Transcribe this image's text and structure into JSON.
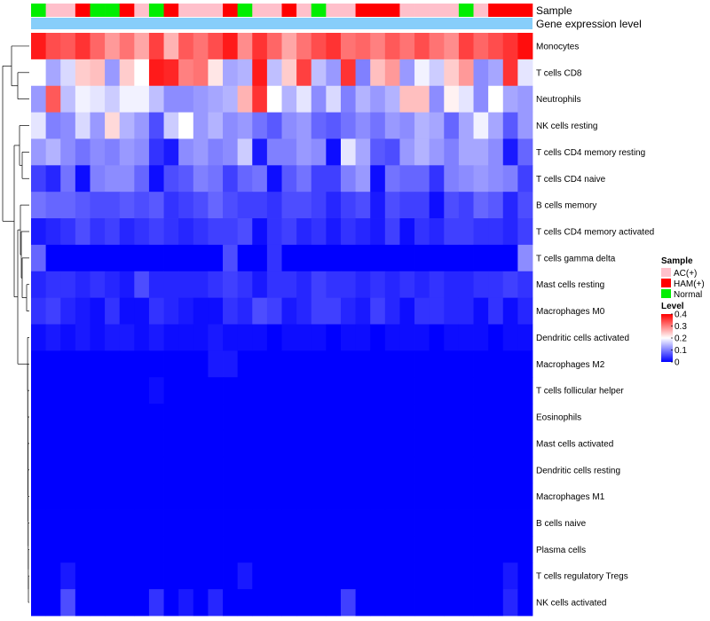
{
  "chart_data": {
    "type": "heatmap",
    "annotations": {
      "sample_label": "Sample",
      "level_label": "Gene expression level",
      "sample_colors": [
        "Normal",
        "AC(+)",
        "AC(+)",
        "HAM(+)",
        "Normal",
        "Normal",
        "HAM(+)",
        "AC(+)",
        "Normal",
        "HAM(+)",
        "AC(+)",
        "AC(+)",
        "AC(+)",
        "HAM(+)",
        "Normal",
        "AC(+)",
        "AC(+)",
        "HAM(+)",
        "AC(+)",
        "Normal",
        "AC(+)",
        "AC(+)",
        "HAM(+)",
        "HAM(+)",
        "HAM(+)",
        "AC(+)",
        "AC(+)",
        "AC(+)",
        "AC(+)",
        "Normal",
        "AC(+)",
        "HAM(+)",
        "HAM(+)",
        "HAM(+)"
      ]
    },
    "rows": [
      "Monocytes",
      "T cells CD8",
      "Neutrophils",
      "NK cells resting",
      "T cells CD4 memory resting",
      "T cells CD4 naive",
      "B cells memory",
      "T cells CD4 memory activated",
      "T cells gamma delta",
      "Mast cells resting",
      "Macrophages M0",
      "Dendritic cells activated",
      "Macrophages M2",
      "T cells follicular helper",
      "Eosinophils",
      "Mast cells activated",
      "Dendritic cells resting",
      "Macrophages M1",
      "B cells naive",
      "Plasma cells",
      "T cells regulatory  Tregs",
      "NK cells activated"
    ],
    "values": [
      [
        0.38,
        0.34,
        0.33,
        0.36,
        0.32,
        0.28,
        0.31,
        0.27,
        0.35,
        0.26,
        0.33,
        0.31,
        0.34,
        0.38,
        0.29,
        0.36,
        0.32,
        0.27,
        0.31,
        0.34,
        0.36,
        0.31,
        0.32,
        0.3,
        0.33,
        0.31,
        0.34,
        0.31,
        0.29,
        0.35,
        0.32,
        0.34,
        0.36,
        0.39
      ],
      [
        0.2,
        0.13,
        0.17,
        0.24,
        0.25,
        0.12,
        0.24,
        0.2,
        0.38,
        0.37,
        0.3,
        0.31,
        0.22,
        0.13,
        0.14,
        0.38,
        0.15,
        0.24,
        0.35,
        0.15,
        0.12,
        0.36,
        0.1,
        0.25,
        0.28,
        0.12,
        0.19,
        0.16,
        0.24,
        0.28,
        0.11,
        0.13,
        0.36,
        0.18
      ],
      [
        0.12,
        0.33,
        0.15,
        0.19,
        0.18,
        0.16,
        0.19,
        0.19,
        0.15,
        0.11,
        0.11,
        0.12,
        0.13,
        0.14,
        0.26,
        0.36,
        0.2,
        0.14,
        0.18,
        0.11,
        0.17,
        0.1,
        0.14,
        0.12,
        0.14,
        0.25,
        0.25,
        0.11,
        0.21,
        0.18,
        0.11,
        0.2,
        0.13,
        0.12
      ],
      [
        0.18,
        0.1,
        0.11,
        0.17,
        0.12,
        0.23,
        0.14,
        0.12,
        0.06,
        0.16,
        0.2,
        0.12,
        0.14,
        0.11,
        0.12,
        0.09,
        0.07,
        0.11,
        0.12,
        0.08,
        0.07,
        0.09,
        0.11,
        0.09,
        0.12,
        0.11,
        0.14,
        0.13,
        0.08,
        0.13,
        0.19,
        0.13,
        0.07,
        0.12
      ],
      [
        0.12,
        0.14,
        0.11,
        0.09,
        0.11,
        0.1,
        0.12,
        0.11,
        0.04,
        0.02,
        0.11,
        0.12,
        0.1,
        0.11,
        0.16,
        0.02,
        0.1,
        0.1,
        0.12,
        0.11,
        0.01,
        0.18,
        0.13,
        0.07,
        0.06,
        0.12,
        0.14,
        0.12,
        0.1,
        0.13,
        0.13,
        0.11,
        0.02,
        0.08
      ],
      [
        0.05,
        0.03,
        0.09,
        0.01,
        0.1,
        0.11,
        0.11,
        0.08,
        0.01,
        0.06,
        0.07,
        0.1,
        0.09,
        0.05,
        0.08,
        0.09,
        0.01,
        0.07,
        0.09,
        0.05,
        0.05,
        0.1,
        0.12,
        0.01,
        0.09,
        0.08,
        0.08,
        0.04,
        0.1,
        0.11,
        0.12,
        0.11,
        0.1,
        0.05
      ],
      [
        0.09,
        0.08,
        0.08,
        0.07,
        0.06,
        0.06,
        0.07,
        0.06,
        0.07,
        0.04,
        0.05,
        0.06,
        0.08,
        0.06,
        0.05,
        0.05,
        0.04,
        0.06,
        0.06,
        0.05,
        0.03,
        0.05,
        0.06,
        0.02,
        0.06,
        0.05,
        0.05,
        0.01,
        0.06,
        0.05,
        0.08,
        0.07,
        0.03,
        0.06
      ],
      [
        0.02,
        0.03,
        0.04,
        0.06,
        0.04,
        0.05,
        0.03,
        0.04,
        0.05,
        0.04,
        0.03,
        0.04,
        0.05,
        0.05,
        0.06,
        0.01,
        0.04,
        0.05,
        0.03,
        0.04,
        0.02,
        0.04,
        0.03,
        0.02,
        0.05,
        0.01,
        0.04,
        0.03,
        0.05,
        0.05,
        0.04,
        0.04,
        0.03,
        0.05
      ],
      [
        0.08,
        0.0,
        0.0,
        0.0,
        0.0,
        0.0,
        0.0,
        0.0,
        0.0,
        0.0,
        0.0,
        0.0,
        0.0,
        0.06,
        0.0,
        0.0,
        0.04,
        0.0,
        0.0,
        0.0,
        0.0,
        0.0,
        0.0,
        0.0,
        0.0,
        0.0,
        0.0,
        0.0,
        0.0,
        0.0,
        0.0,
        0.0,
        0.0,
        0.11
      ],
      [
        0.03,
        0.04,
        0.04,
        0.03,
        0.04,
        0.03,
        0.02,
        0.06,
        0.03,
        0.03,
        0.03,
        0.03,
        0.04,
        0.05,
        0.04,
        0.02,
        0.04,
        0.04,
        0.03,
        0.05,
        0.04,
        0.04,
        0.03,
        0.04,
        0.03,
        0.04,
        0.03,
        0.04,
        0.03,
        0.03,
        0.04,
        0.04,
        0.05,
        0.04
      ],
      [
        0.04,
        0.05,
        0.03,
        0.02,
        0.01,
        0.04,
        0.01,
        0.01,
        0.04,
        0.03,
        0.02,
        0.01,
        0.01,
        0.04,
        0.03,
        0.06,
        0.05,
        0.02,
        0.03,
        0.05,
        0.05,
        0.03,
        0.02,
        0.05,
        0.03,
        0.01,
        0.04,
        0.04,
        0.03,
        0.03,
        0.01,
        0.04,
        0.01,
        0.03
      ],
      [
        0.01,
        0.02,
        0.01,
        0.02,
        0.01,
        0.02,
        0.02,
        0.01,
        0.02,
        0.01,
        0.01,
        0.01,
        0.02,
        0.01,
        0.01,
        0.01,
        0.0,
        0.01,
        0.01,
        0.01,
        0.0,
        0.01,
        0.01,
        0.0,
        0.01,
        0.01,
        0.01,
        0.0,
        0.01,
        0.01,
        0.01,
        0.0,
        0.01,
        0.01
      ],
      [
        0.0,
        0.0,
        0.0,
        0.0,
        0.0,
        0.0,
        0.0,
        0.0,
        0.0,
        0.0,
        0.0,
        0.0,
        0.02,
        0.02,
        0.0,
        0.0,
        0.0,
        0.0,
        0.0,
        0.0,
        0.0,
        0.0,
        0.0,
        0.0,
        0.0,
        0.0,
        0.0,
        0.0,
        0.0,
        0.0,
        0.0,
        0.0,
        0.0,
        0.0
      ],
      [
        0.0,
        0.0,
        0.0,
        0.0,
        0.0,
        0.0,
        0.0,
        0.0,
        0.01,
        0.0,
        0.0,
        0.0,
        0.0,
        0.0,
        0.0,
        0.0,
        0.0,
        0.0,
        0.0,
        0.0,
        0.0,
        0.0,
        0.0,
        0.0,
        0.0,
        0.0,
        0.0,
        0.0,
        0.0,
        0.0,
        0.0,
        0.0,
        0.0,
        0.0
      ],
      [
        0.0,
        0.0,
        0.0,
        0.0,
        0.0,
        0.0,
        0.0,
        0.0,
        0.0,
        0.0,
        0.0,
        0.0,
        0.0,
        0.0,
        0.0,
        0.0,
        0.0,
        0.0,
        0.0,
        0.0,
        0.0,
        0.0,
        0.0,
        0.0,
        0.0,
        0.0,
        0.0,
        0.0,
        0.0,
        0.0,
        0.0,
        0.0,
        0.0,
        0.0
      ],
      [
        0.0,
        0.0,
        0.0,
        0.0,
        0.0,
        0.0,
        0.0,
        0.0,
        0.0,
        0.0,
        0.0,
        0.0,
        0.0,
        0.0,
        0.0,
        0.0,
        0.0,
        0.0,
        0.0,
        0.0,
        0.0,
        0.0,
        0.0,
        0.0,
        0.0,
        0.0,
        0.0,
        0.0,
        0.0,
        0.0,
        0.0,
        0.0,
        0.0,
        0.0
      ],
      [
        0.0,
        0.0,
        0.0,
        0.0,
        0.0,
        0.0,
        0.0,
        0.0,
        0.0,
        0.0,
        0.0,
        0.0,
        0.0,
        0.0,
        0.0,
        0.0,
        0.0,
        0.0,
        0.0,
        0.0,
        0.0,
        0.0,
        0.0,
        0.0,
        0.0,
        0.0,
        0.0,
        0.0,
        0.0,
        0.0,
        0.0,
        0.0,
        0.0,
        0.0
      ],
      [
        0.0,
        0.0,
        0.0,
        0.0,
        0.0,
        0.0,
        0.0,
        0.0,
        0.0,
        0.0,
        0.0,
        0.0,
        0.0,
        0.0,
        0.0,
        0.0,
        0.0,
        0.0,
        0.0,
        0.0,
        0.0,
        0.0,
        0.0,
        0.0,
        0.0,
        0.0,
        0.0,
        0.0,
        0.0,
        0.0,
        0.0,
        0.0,
        0.0,
        0.0
      ],
      [
        0.0,
        0.0,
        0.0,
        0.0,
        0.0,
        0.0,
        0.0,
        0.0,
        0.0,
        0.0,
        0.0,
        0.0,
        0.0,
        0.0,
        0.0,
        0.0,
        0.0,
        0.0,
        0.0,
        0.0,
        0.0,
        0.0,
        0.0,
        0.0,
        0.0,
        0.0,
        0.0,
        0.0,
        0.0,
        0.0,
        0.0,
        0.0,
        0.0,
        0.0
      ],
      [
        0.0,
        0.0,
        0.0,
        0.0,
        0.0,
        0.0,
        0.0,
        0.0,
        0.0,
        0.0,
        0.0,
        0.0,
        0.0,
        0.0,
        0.0,
        0.0,
        0.0,
        0.0,
        0.0,
        0.0,
        0.0,
        0.0,
        0.0,
        0.0,
        0.0,
        0.0,
        0.0,
        0.0,
        0.0,
        0.0,
        0.0,
        0.0,
        0.0,
        0.0
      ],
      [
        0.0,
        0.0,
        0.02,
        0.0,
        0.0,
        0.0,
        0.0,
        0.0,
        0.0,
        0.0,
        0.0,
        0.0,
        0.0,
        0.0,
        0.02,
        0.0,
        0.0,
        0.0,
        0.0,
        0.0,
        0.0,
        0.0,
        0.0,
        0.0,
        0.0,
        0.0,
        0.0,
        0.0,
        0.0,
        0.0,
        0.0,
        0.0,
        0.02,
        0.0
      ],
      [
        0.0,
        0.0,
        0.06,
        0.0,
        0.0,
        0.0,
        0.0,
        0.0,
        0.04,
        0.0,
        0.02,
        0.0,
        0.03,
        0.0,
        0.0,
        0.0,
        0.0,
        0.0,
        0.0,
        0.0,
        0.0,
        0.05,
        0.0,
        0.0,
        0.0,
        0.0,
        0.0,
        0.0,
        0.0,
        0.0,
        0.0,
        0.0,
        0.03,
        0.0
      ]
    ],
    "legend": {
      "sample_title": "Sample",
      "sample_entries": [
        {
          "label": "AC(+)",
          "color": "#ffc0cb"
        },
        {
          "label": "HAM(+)",
          "color": "#ff0000"
        },
        {
          "label": "Normal",
          "color": "#00ee00"
        }
      ],
      "level_title": "Level",
      "level_ticks": [
        "0.4",
        "0.3",
        "0.2",
        "0.1",
        "0"
      ],
      "level_range": [
        0,
        0.4
      ]
    },
    "colors": {
      "low": "#0000ff",
      "mid": "#ffffff",
      "high": "#ff0000",
      "level_bar": "#87cefa"
    }
  }
}
